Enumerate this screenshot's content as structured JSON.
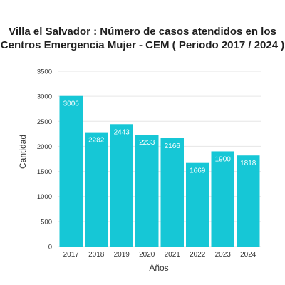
{
  "chart_data": {
    "type": "bar",
    "title_lines": [
      "Villa el Salvador : Número de casos atendidos en los",
      "Centros Emergencia Mujer - CEM ( Periodo 2017 / 2024 )"
    ],
    "categories": [
      "2017",
      "2018",
      "2019",
      "2020",
      "2021",
      "2022",
      "2023",
      "2024"
    ],
    "series": [
      {
        "values": [
          3006,
          2282,
          2443,
          2233,
          2166,
          1669,
          1900,
          1818
        ]
      }
    ],
    "xlabel": "Años",
    "ylabel": "Cantidad",
    "ylim": [
      0,
      3500
    ],
    "yticks": [
      0,
      500,
      1000,
      1500,
      2000,
      2500,
      3000,
      3500
    ],
    "grid": true,
    "bar_color": "#16c7d6",
    "label_color": "#ffffff"
  }
}
